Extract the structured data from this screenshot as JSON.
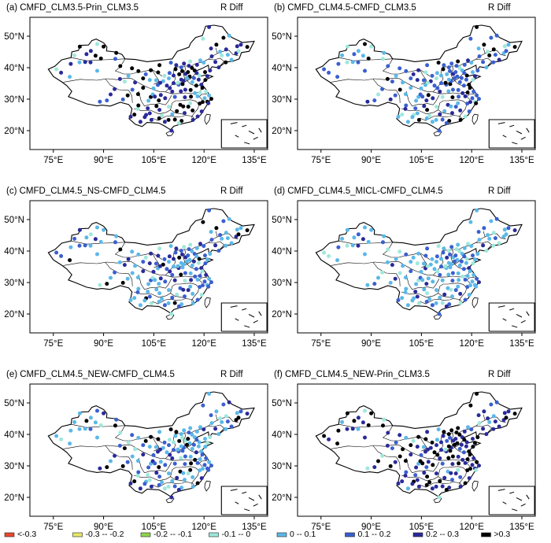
{
  "figure": {
    "diff_label": "R Diff",
    "lat_ticks": [
      {
        "value": 50,
        "label": "50°N"
      },
      {
        "value": 40,
        "label": "40°N"
      },
      {
        "value": 30,
        "label": "30°N"
      },
      {
        "value": 20,
        "label": "20°N"
      }
    ],
    "lon_ticks": [
      {
        "value": 75,
        "label": "75°E"
      },
      {
        "value": 90,
        "label": "90°E"
      },
      {
        "value": 105,
        "label": "105°E"
      },
      {
        "value": 120,
        "label": "120°E"
      },
      {
        "value": 135,
        "label": "135°E"
      }
    ],
    "lon_range": [
      68,
      139
    ],
    "lat_range": [
      14,
      56
    ],
    "boundary_color": "#000000",
    "panels": [
      {
        "id": "a",
        "title": "(a) CMFD_CLM3.5-Prin_CLM3.5",
        "dominant_bins": [
          6,
          7,
          4,
          5,
          3,
          8
        ]
      },
      {
        "id": "b",
        "title": "(b) CMFD_CLM4.5-CMFD_CLM3.5",
        "dominant_bins": [
          5,
          4,
          6,
          3,
          7,
          8
        ]
      },
      {
        "id": "c",
        "title": "(c) CMFD_CLM4.5_NS-CMFD_CLM4.5",
        "dominant_bins": [
          4,
          5,
          6,
          3,
          7
        ]
      },
      {
        "id": "d",
        "title": "(d) CMFD_CLM4.5_MICL-CMFD_CLM4.5",
        "dominant_bins": [
          4,
          5,
          3,
          6
        ]
      },
      {
        "id": "e",
        "title": "(e) CMFD_CLM4.5_NEW-CMFD_CLM4.5",
        "dominant_bins": [
          4,
          5,
          6,
          7,
          3
        ]
      },
      {
        "id": "f",
        "title": "(f) CMFD_CLM4.5_NEW-Prin_CLM3.5",
        "dominant_bins": [
          6,
          7,
          8,
          5,
          4,
          3
        ]
      }
    ]
  },
  "legend": [
    {
      "label": "<-0.3",
      "color": "#e8472b"
    },
    {
      "label": "-0.3 -- -0.2",
      "color": "#e6e86a"
    },
    {
      "label": "-0.2 -- -0.1",
      "color": "#8fd44e"
    },
    {
      "label": "-0.1 -- 0",
      "color": "#9ee8dc"
    },
    {
      "label": "0 -- 0.1",
      "color": "#5bb8e8"
    },
    {
      "label": "0.1 -- 0.2",
      "color": "#3a5fcf"
    },
    {
      "label": "0.2 -- 0.3",
      "color": "#2a2a9a"
    },
    {
      "label": ">0.3",
      "color": "#000000"
    }
  ]
}
